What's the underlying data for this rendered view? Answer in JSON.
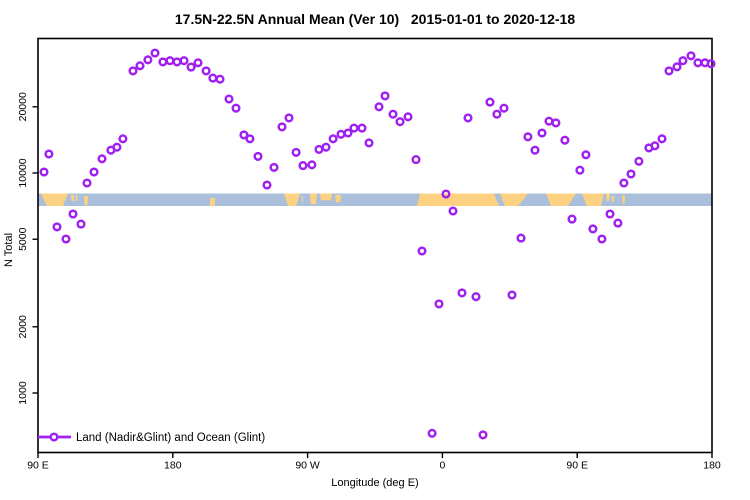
{
  "chart_data": {
    "type": "scatter",
    "title": "17.5N-22.5N Annual Mean (Ver 10)   2015-01-01 to 2020-12-18",
    "xlabel": "Longitude (deg E)",
    "ylabel": "N Total",
    "y_scale": "log10",
    "ylim": [
      540,
      41000
    ],
    "x_axis_note": "x stored as degrees east along axis starting at 90E (0=90E, 90=180, 180=90W, 270=0, 360=90E, 450=180)",
    "x_span_deg": [
      0,
      450
    ],
    "x_ticks": [
      {
        "deg": 0,
        "label": "90 E"
      },
      {
        "deg": 90,
        "label": "180"
      },
      {
        "deg": 180,
        "label": "90 W"
      },
      {
        "deg": 270,
        "label": "0"
      },
      {
        "deg": 360,
        "label": "90 E"
      },
      {
        "deg": 450,
        "label": "180"
      }
    ],
    "y_ticks": [
      1000,
      2000,
      5000,
      10000,
      20000
    ],
    "grid": false,
    "legend": {
      "label": "Land (Nadir&Glint) and Ocean (Glint)",
      "position": "bottom-left",
      "marker": "open-circle-on-line"
    },
    "series": [
      {
        "name": "Land (Nadir&Glint) and Ocean (Glint)",
        "marker": "open-circle",
        "color": "#A020F0",
        "points": [
          [
            4,
            10100
          ],
          [
            7.3,
            12200
          ],
          [
            12.7,
            5690
          ],
          [
            18.7,
            5010
          ],
          [
            23.4,
            6510
          ],
          [
            28.7,
            5860
          ],
          [
            32.7,
            9010
          ],
          [
            37.4,
            10100
          ],
          [
            42.7,
            11600
          ],
          [
            48.7,
            12700
          ],
          [
            52.7,
            13100
          ],
          [
            56.7,
            14300
          ],
          [
            63.4,
            29100
          ],
          [
            68.1,
            30700
          ],
          [
            73.4,
            32700
          ],
          [
            78.1,
            35100
          ],
          [
            83.4,
            32000
          ],
          [
            88.1,
            32400
          ],
          [
            92.8,
            32000
          ],
          [
            97.5,
            32400
          ],
          [
            102.2,
            30300
          ],
          [
            106.8,
            31700
          ],
          [
            112.2,
            29100
          ],
          [
            116.8,
            27000
          ],
          [
            121.5,
            26700
          ],
          [
            127.5,
            21700
          ],
          [
            132.2,
            19700
          ],
          [
            137.5,
            14900
          ],
          [
            141.5,
            14300
          ],
          [
            146.9,
            11900
          ],
          [
            152.9,
            8820
          ],
          [
            157.6,
            10600
          ],
          [
            162.9,
            16200
          ],
          [
            167.6,
            17800
          ],
          [
            172.3,
            12400
          ],
          [
            176.9,
            10800
          ],
          [
            182.9,
            10900
          ],
          [
            187.6,
            12800
          ],
          [
            192.3,
            13100
          ],
          [
            197,
            14300
          ],
          [
            202.3,
            15000
          ],
          [
            207,
            15200
          ],
          [
            211,
            16000
          ],
          [
            216.3,
            16000
          ],
          [
            221,
            13700
          ],
          [
            227.7,
            20000
          ],
          [
            231.7,
            22400
          ],
          [
            237,
            18500
          ],
          [
            241.7,
            17100
          ],
          [
            247,
            18000
          ],
          [
            252.4,
            11500
          ],
          [
            256.4,
            4420
          ],
          [
            263.1,
            656
          ],
          [
            267.7,
            2540
          ],
          [
            272.4,
            8030
          ],
          [
            277.1,
            6720
          ],
          [
            283.1,
            2850
          ],
          [
            287.1,
            17800
          ],
          [
            292.4,
            2740
          ],
          [
            297.1,
            645
          ],
          [
            301.8,
            21000
          ],
          [
            306.4,
            18500
          ],
          [
            311.1,
            19700
          ],
          [
            316.5,
            2790
          ],
          [
            322.5,
            5060
          ],
          [
            327.1,
            14600
          ],
          [
            331.8,
            12700
          ],
          [
            336.5,
            15200
          ],
          [
            341.2,
            17200
          ],
          [
            345.8,
            16900
          ],
          [
            351.8,
            14100
          ],
          [
            356.5,
            6170
          ],
          [
            361.8,
            10300
          ],
          [
            365.8,
            12100
          ],
          [
            370.5,
            5570
          ],
          [
            376.5,
            5010
          ],
          [
            381.9,
            6510
          ],
          [
            387.2,
            5920
          ],
          [
            391.2,
            9010
          ],
          [
            395.9,
            9900
          ],
          [
            401.2,
            11300
          ],
          [
            407.9,
            13000
          ],
          [
            411.9,
            13300
          ],
          [
            416.6,
            14300
          ],
          [
            421.3,
            29100
          ],
          [
            426.6,
            30400
          ],
          [
            430.6,
            32400
          ],
          [
            436,
            34100
          ],
          [
            440.6,
            31700
          ],
          [
            445.3,
            31700
          ],
          [
            449.3,
            31400
          ]
        ]
      }
    ],
    "land_ocean_strip": {
      "description": "map strip of 17.5N-22.5N latitude band across plot at N ~ 7000-8000",
      "ocean_color": "#a9bfdb",
      "land_color": "#fcd182",
      "land_segments": [
        {
          "t": [
            2,
            20
          ],
          "b": [
            6,
            16.7
          ]
        },
        {
          "t": [
            22,
            24
          ],
          "b": [
            22.5,
            24
          ],
          "y": [
            0.1,
            0.6
          ]
        },
        {
          "t": [
            25,
            26.5
          ],
          "b": [
            25.3,
            26.2
          ],
          "y": [
            0.15,
            0.6
          ]
        },
        {
          "t": [
            30.7,
            33.4
          ],
          "b": [
            31,
            33
          ],
          "y": [
            0.2,
            0.95
          ]
        },
        {
          "t": [
            114.8,
            118.2
          ],
          "b": [
            114.8,
            118
          ],
          "y": [
            0.35,
            1
          ]
        },
        {
          "t": [
            164.2,
            174.9
          ],
          "b": [
            166.9,
            172.3
          ]
        },
        {
          "t": [
            176,
            177
          ],
          "b": [
            176.2,
            176.8
          ],
          "y": [
            0.2,
            0.7
          ]
        },
        {
          "t": [
            181.6,
            186.3
          ],
          "b": [
            182,
            185.6
          ],
          "y": [
            0,
            0.85
          ]
        },
        {
          "t": [
            188.3,
            196.3
          ],
          "b": [
            188.9,
            195.6
          ],
          "y": [
            0,
            0.55
          ]
        },
        {
          "t": [
            198.3,
            202.3
          ],
          "b": [
            198.9,
            201.8
          ],
          "y": [
            0.12,
            0.7
          ]
        },
        {
          "t": [
            255,
            327.1
          ],
          "b": [
            253,
            320.5
          ]
        },
        {
          "t": [
            339.2,
            359.2
          ],
          "b": [
            342.5,
            353.9
          ]
        },
        {
          "t": [
            363.2,
            377.9
          ],
          "b": [
            366.5,
            375.9
          ]
        },
        {
          "t": [
            379.2,
            381.9
          ],
          "b": [
            379.6,
            381.4
          ],
          "y": [
            0,
            0.6
          ]
        },
        {
          "t": [
            383,
            384.5
          ],
          "b": [
            383.2,
            384.2
          ],
          "y": [
            0.2,
            0.7
          ]
        },
        {
          "t": [
            389.9,
            391.9
          ],
          "b": [
            390.2,
            391.6
          ],
          "y": [
            0.15,
            0.8
          ]
        }
      ],
      "ocean_overlays": [
        {
          "t": [
            304.4,
            308.4
          ],
          "b": [
            307.8,
            311.8
          ]
        }
      ]
    }
  }
}
